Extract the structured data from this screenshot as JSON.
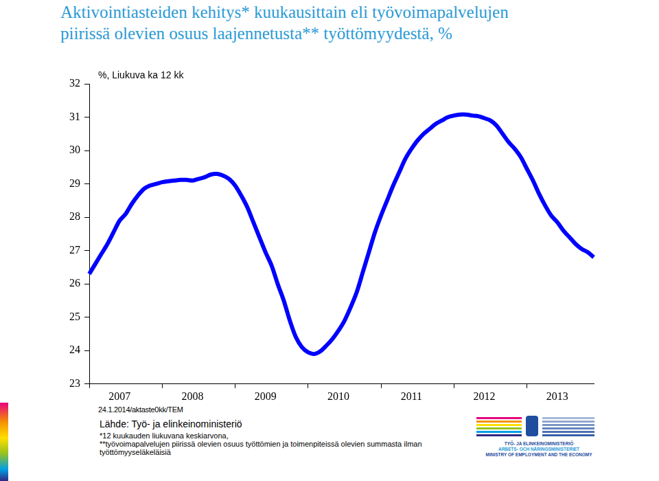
{
  "chart_data": {
    "type": "line",
    "title": [
      "Aktivointiasteiden kehitys* kuukausittain eli työvoimapalvelujen",
      "piirissä olevien osuus laajennetusta** työttömyydestä, %"
    ],
    "ylabel": "%, Liukuva ka 12 kk",
    "categories": [
      null,
      null,
      null,
      null,
      null,
      "2007",
      null,
      null,
      null,
      null,
      null,
      null,
      null,
      null,
      null,
      null,
      null,
      "2008",
      null,
      null,
      null,
      null,
      null,
      null,
      null,
      null,
      null,
      null,
      null,
      "2009",
      null,
      null,
      null,
      null,
      null,
      null,
      null,
      null,
      null,
      null,
      null,
      "2010",
      null,
      null,
      null,
      null,
      null,
      null,
      null,
      null,
      null,
      null,
      null,
      "2011",
      null,
      null,
      null,
      null,
      null,
      null,
      null,
      null,
      null,
      null,
      null,
      "2012",
      null,
      null,
      null,
      null,
      null,
      null,
      null,
      null,
      null,
      null,
      null,
      "2013",
      null,
      null,
      null,
      null,
      null,
      null
    ],
    "values": [
      26.3,
      26.6,
      26.9,
      27.2,
      27.55,
      27.9,
      28.1,
      28.4,
      28.65,
      28.85,
      28.95,
      29.0,
      29.05,
      29.08,
      29.1,
      29.12,
      29.12,
      29.1,
      29.15,
      29.2,
      29.28,
      29.3,
      29.25,
      29.15,
      28.95,
      28.65,
      28.3,
      27.85,
      27.4,
      26.95,
      26.55,
      26.0,
      25.5,
      24.9,
      24.4,
      24.1,
      23.95,
      23.9,
      23.98,
      24.15,
      24.35,
      24.6,
      24.9,
      25.3,
      25.75,
      26.35,
      26.95,
      27.55,
      28.05,
      28.5,
      28.95,
      29.35,
      29.75,
      30.05,
      30.3,
      30.5,
      30.65,
      30.8,
      30.9,
      31.0,
      31.05,
      31.08,
      31.08,
      31.05,
      31.03,
      30.97,
      30.9,
      30.75,
      30.5,
      30.25,
      30.05,
      29.8,
      29.45,
      29.1,
      28.7,
      28.35,
      28.05,
      27.85,
      27.6,
      27.4,
      27.2,
      27.05,
      26.95,
      26.8
    ],
    "color": "#0000ff",
    "ylim": [
      23,
      32
    ],
    "yticks": [
      23,
      24,
      25,
      26,
      27,
      28,
      29,
      30,
      31,
      32
    ],
    "grid": false
  },
  "footer": {
    "date_code": "24.1.2014/aktaste0kk/TEM",
    "source": "Lähde: Työ- ja elinkeinoministeriö",
    "notes": [
      "*12 kuukauden liukuvana keskiarvona,",
      "**työvoimapalvelujen piirissä olevien osuus työttömien ja toimenpiteissä olevien summasta ilman työttömyyseläkeläisiä"
    ]
  },
  "logo": {
    "lines": [
      "TYÖ- JA ELINKEINOMINISTERIÖ",
      "ARBETS- OCH NÄRINGSMINISTERIET",
      "MINISTRY OF EMPLOYMENT AND THE ECONOMY"
    ]
  }
}
